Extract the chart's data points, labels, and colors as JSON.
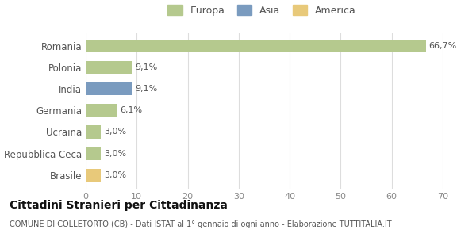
{
  "categories": [
    "Romania",
    "Polonia",
    "India",
    "Germania",
    "Ucraina",
    "Repubblica Ceca",
    "Brasile"
  ],
  "values": [
    66.7,
    9.1,
    9.1,
    6.1,
    3.0,
    3.0,
    3.0
  ],
  "labels": [
    "66,7%",
    "9,1%",
    "9,1%",
    "6,1%",
    "3,0%",
    "3,0%",
    "3,0%"
  ],
  "colors": [
    "#b5c98e",
    "#b5c98e",
    "#7a9bbf",
    "#b5c98e",
    "#b5c98e",
    "#b5c98e",
    "#e8c97a"
  ],
  "legend_labels": [
    "Europa",
    "Asia",
    "America"
  ],
  "legend_colors": [
    "#b5c98e",
    "#7a9bbf",
    "#e8c97a"
  ],
  "xlim": [
    0,
    70
  ],
  "xticks": [
    0,
    10,
    20,
    30,
    40,
    50,
    60,
    70
  ],
  "title": "Cittadini Stranieri per Cittadinanza",
  "subtitle": "COMUNE DI COLLETORTO (CB) - Dati ISTAT al 1° gennaio di ogni anno - Elaborazione TUTTITALIA.IT",
  "bg_color": "#ffffff",
  "grid_color": "#dddddd"
}
